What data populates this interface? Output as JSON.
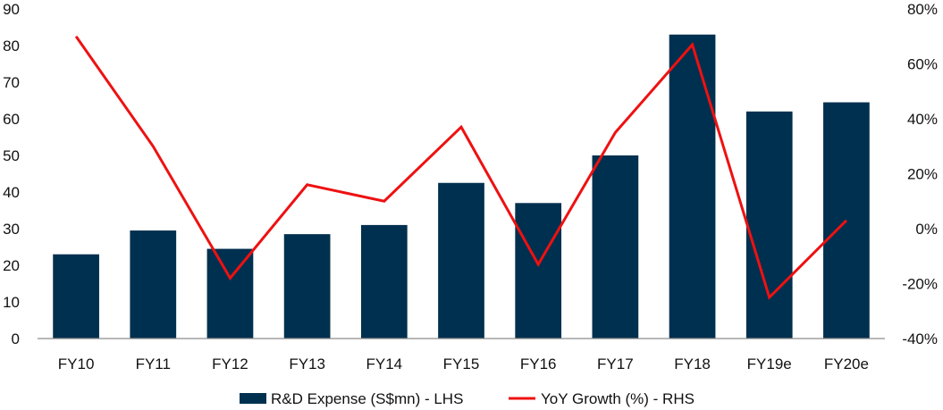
{
  "colors": {
    "bar": "#00304f",
    "line": "#ee1111",
    "axis": "#8c8c8c"
  },
  "chart_data": {
    "type": "bar",
    "categories": [
      "FY10",
      "FY11",
      "FY12",
      "FY13",
      "FY14",
      "FY15",
      "FY16",
      "FY17",
      "FY18",
      "FY19e",
      "FY20e"
    ],
    "series": [
      {
        "name": "R&D Expense (S$mn) - LHS",
        "type": "bar",
        "axis": "left",
        "values": [
          23,
          29.5,
          24.5,
          28.5,
          31,
          42.5,
          37,
          50,
          83,
          62,
          64.5
        ]
      },
      {
        "name": "YoY Growth (%) - RHS",
        "type": "line",
        "axis": "right",
        "values": [
          70,
          30,
          -18,
          16,
          10,
          37,
          -13,
          35,
          67,
          -25,
          3
        ]
      }
    ],
    "left_axis": {
      "min": 0,
      "max": 90,
      "step": 10,
      "ticks": [
        "0",
        "10",
        "20",
        "30",
        "40",
        "50",
        "60",
        "70",
        "80",
        "90"
      ]
    },
    "right_axis": {
      "min": -40,
      "max": 80,
      "step": 20,
      "ticks": [
        "-40%",
        "-20%",
        "0%",
        "20%",
        "40%",
        "60%",
        "80%"
      ]
    },
    "legend": {
      "position": "bottom"
    },
    "grid": false
  }
}
